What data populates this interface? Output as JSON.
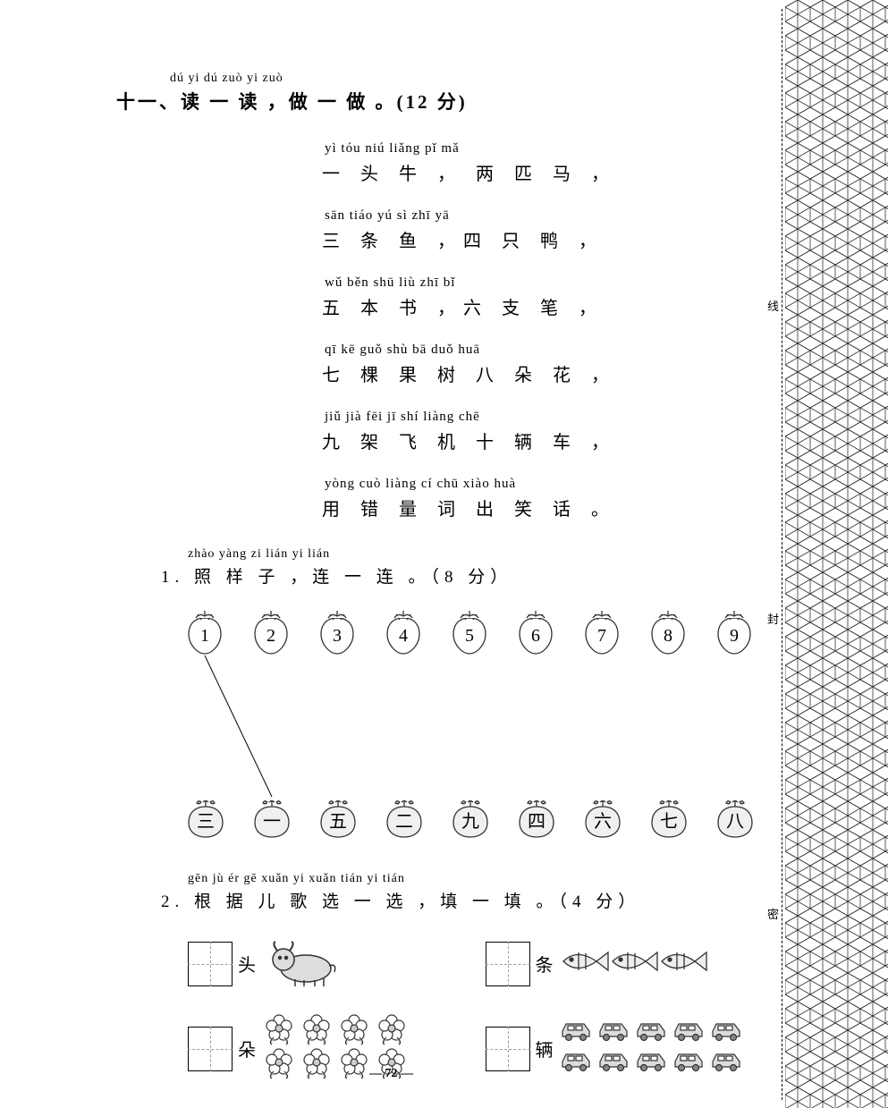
{
  "title": {
    "pinyin": "dú yi dú  zuò yi zuò",
    "hanzi": "十一、读 一 读 ，做 一 做 。(12 分)"
  },
  "poem": [
    {
      "pinyin": "yì tóu niú   liǎng pǐ mǎ",
      "hanzi": "一 头 牛 ， 两  匹 马 ，"
    },
    {
      "pinyin": "sān tiáo yú    sì zhī yā",
      "hanzi": "三  条  鱼 ，四 只 鸭 ，"
    },
    {
      "pinyin": "wǔ běn shū   liù zhī  bǐ",
      "hanzi": "五 本 书 ，六 支 笔 ，"
    },
    {
      "pinyin": "qī kē guǒ shù bā duǒ huā",
      "hanzi": "七 棵 果 树 八 朵 花 ，"
    },
    {
      "pinyin": "jiǔ jià fēi jī shí liàng chē",
      "hanzi": "九 架 飞 机 十  辆  车 ，"
    },
    {
      "pinyin": "yòng cuò liàng cí chū xiào huà",
      "hanzi": "用  错  量 词 出 笑 话 。"
    }
  ],
  "q1": {
    "pinyin": "zhào yàng zi   lián yi lián",
    "hanzi": "1.  照  样  子 ，连 一 连 。（8 分）",
    "strawberries": [
      "1",
      "2",
      "3",
      "4",
      "5",
      "6",
      "7",
      "8",
      "9"
    ],
    "apples": [
      "三",
      "一",
      "五",
      "二",
      "九",
      "四",
      "六",
      "七",
      "八"
    ],
    "example_line": {
      "from_idx": 0,
      "to_idx": 1
    }
  },
  "q2": {
    "pinyin": "gēn jù ér gē xuǎn yi xuǎn   tián yi tián",
    "hanzi": "2. 根 据 儿 歌 选 一 选 ，填 一 填 。（4 分）",
    "items": [
      {
        "char": "头",
        "pic": "ox",
        "count": 1
      },
      {
        "char": "条",
        "pic": "fish",
        "count": 3
      },
      {
        "char": "朵",
        "pic": "flower",
        "count": 8
      },
      {
        "char": "辆",
        "pic": "car",
        "count": 10
      }
    ]
  },
  "page_number": "72",
  "margin_chars": [
    "线",
    "封",
    "密"
  ],
  "colors": {
    "stroke": "#333333",
    "fill_light": "#e8e8e8",
    "bg": "#ffffff"
  }
}
